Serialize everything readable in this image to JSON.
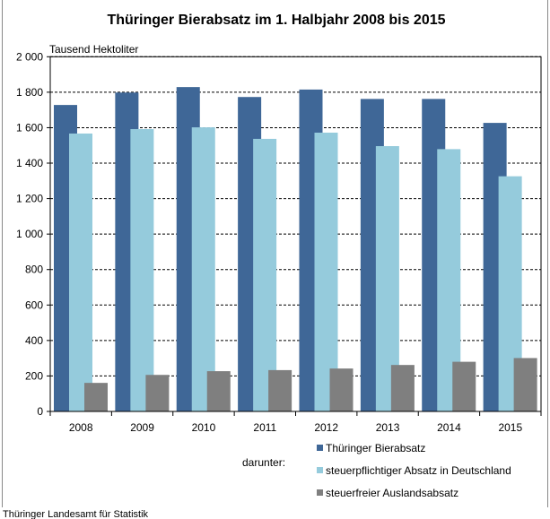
{
  "chart_data": {
    "type": "bar",
    "title": "Thüringer Bierabsatz im 1. Halbjahr 2008 bis 2015",
    "ylabel": "Tausend  Hektoliter",
    "xlabel": "",
    "ylim": [
      0,
      2000
    ],
    "yticks": [
      0,
      200,
      400,
      600,
      800,
      1000,
      1200,
      1400,
      1600,
      1800,
      2000
    ],
    "ytick_labels": [
      "0",
      "200",
      "400",
      "600",
      "800",
      "1 000",
      "1 200",
      "1 400",
      "1 600",
      "1 800",
      "2 000"
    ],
    "grid": "horizontal dashed",
    "legend_position": "bottom-right",
    "legend_prefix": "darunter:",
    "categories": [
      "2008",
      "2009",
      "2010",
      "2011",
      "2012",
      "2013",
      "2014",
      "2015"
    ],
    "series": [
      {
        "name": "Thüringer Bierabsatz",
        "color": "#3f6797",
        "values": [
          1728,
          1798,
          1829,
          1773,
          1815,
          1762,
          1762,
          1627
        ]
      },
      {
        "name": "steuerpflichtiger Absatz in Deutschland",
        "color": "#95cbdc",
        "values": [
          1567,
          1592,
          1602,
          1537,
          1572,
          1496,
          1479,
          1326
        ]
      },
      {
        "name": "steuerfreier Auslandsabsatz",
        "color": "#7f7f7f",
        "values": [
          161,
          206,
          227,
          233,
          242,
          262,
          280,
          301
        ]
      }
    ]
  },
  "source": "Thüringer Landesamt für Statistik"
}
